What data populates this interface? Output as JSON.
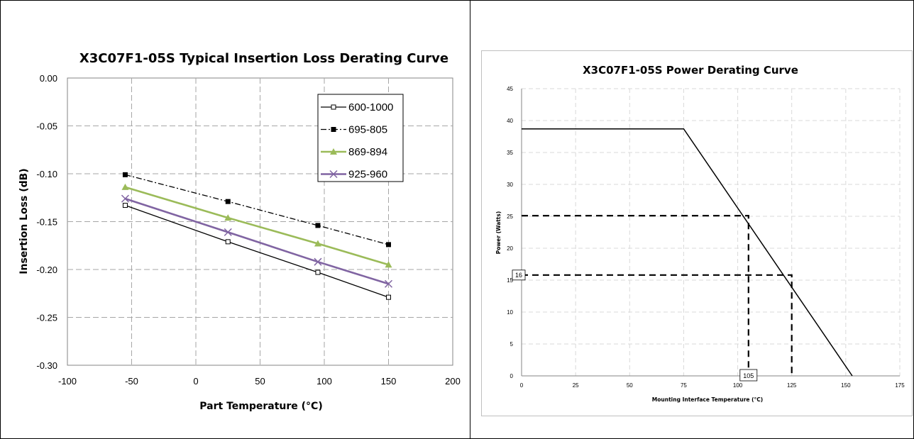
{
  "chart_data": [
    {
      "type": "line",
      "title": "X3C07F1-05S Typical Insertion Loss Derating Curve",
      "xlabel": "Part Temperature (°C)",
      "ylabel": "Insertion Loss (dB)",
      "xlim": [
        -100,
        200
      ],
      "ylim": [
        -0.3,
        0.0
      ],
      "x_ticks": [
        "-100",
        "-50",
        "0",
        "50",
        "100",
        "150",
        "200"
      ],
      "y_ticks": [
        "0.00",
        "-0.05",
        "-0.10",
        "-0.15",
        "-0.20",
        "-0.25",
        "-0.30"
      ],
      "grid": true,
      "legend_position": "top-right",
      "series": [
        {
          "name": "600-1000",
          "color": "#000000",
          "marker": "hollow-square",
          "line": "solid",
          "x": [
            -55,
            25,
            95,
            150
          ],
          "y": [
            -0.133,
            -0.171,
            -0.203,
            -0.229
          ]
        },
        {
          "name": "695-805",
          "color": "#000000",
          "marker": "filled-square",
          "line": "dash-dot",
          "x": [
            -55,
            25,
            95,
            150
          ],
          "y": [
            -0.101,
            -0.129,
            -0.154,
            -0.174
          ]
        },
        {
          "name": "869-894",
          "color": "#9bbb59",
          "marker": "triangle",
          "line": "solid",
          "x": [
            -55,
            25,
            95,
            150
          ],
          "y": [
            -0.114,
            -0.146,
            -0.173,
            -0.195
          ]
        },
        {
          "name": "925-960",
          "color": "#8064a2",
          "marker": "x",
          "line": "solid",
          "x": [
            -55,
            25,
            95,
            150
          ],
          "y": [
            -0.126,
            -0.161,
            -0.192,
            -0.215
          ]
        }
      ]
    },
    {
      "type": "line",
      "title": "X3C07F1-05S Power Derating Curve",
      "xlabel": "Mounting Interface Temperature (°C)",
      "ylabel": "Power (Watts)",
      "xlim": [
        0,
        175
      ],
      "ylim": [
        0,
        45
      ],
      "x_ticks": [
        "0",
        "25",
        "50",
        "75",
        "100",
        "125",
        "150",
        "175"
      ],
      "y_ticks": [
        "0",
        "5",
        "10",
        "15",
        "20",
        "25",
        "30",
        "35",
        "40",
        "45"
      ],
      "grid": true,
      "series": [
        {
          "color": "#000000",
          "line": "solid",
          "x": [
            0,
            75,
            153
          ],
          "y": [
            38.7,
            38.7,
            0
          ]
        }
      ],
      "reference_lines": [
        {
          "line": "dashed",
          "x": [
            0,
            105,
            105
          ],
          "y": [
            25.1,
            25.1,
            0
          ]
        },
        {
          "line": "dashed",
          "x": [
            0,
            125,
            125
          ],
          "y": [
            15.8,
            15.8,
            0
          ]
        }
      ],
      "annotations": [
        "16",
        "105"
      ]
    }
  ]
}
